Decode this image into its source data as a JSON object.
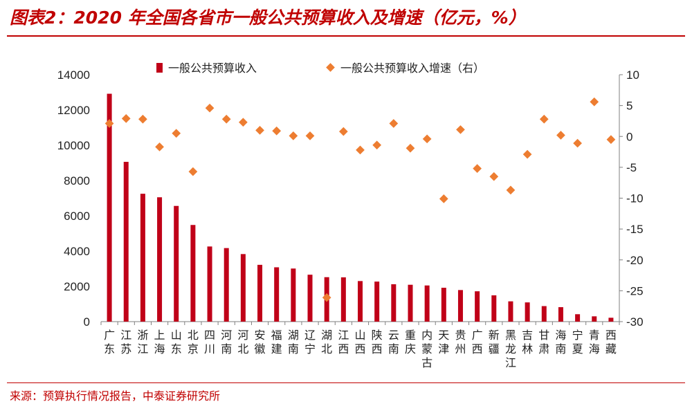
{
  "title": "图表2：2020 年全国各省市一般公共预算收入及增速（亿元，%）",
  "source": "来源：预算执行情况报告，中泰证券研究所",
  "colors": {
    "bar": "#c00018",
    "marker": "#ed7d31",
    "accent": "#c00000"
  },
  "chart_data": {
    "type": "bar",
    "categories": [
      "广东",
      "江苏",
      "浙江",
      "上海",
      "山东",
      "北京",
      "四川",
      "河南",
      "河北",
      "安徽",
      "福建",
      "湖南",
      "辽宁",
      "湖北",
      "江西",
      "山西",
      "陕西",
      "云南",
      "重庆",
      "内蒙古",
      "天津",
      "贵州",
      "广西",
      "新疆",
      "黑龙江",
      "吉林",
      "甘肃",
      "海南",
      "宁夏",
      "青海",
      "西藏"
    ],
    "series": [
      {
        "name": "一般公共预算收入",
        "type": "bar",
        "axis": "left",
        "values": [
          12920,
          9060,
          7250,
          7050,
          6560,
          5480,
          4260,
          4170,
          3830,
          3220,
          3080,
          3010,
          2660,
          2520,
          2510,
          2300,
          2270,
          2120,
          2090,
          2050,
          1920,
          1790,
          1720,
          1490,
          1150,
          1090,
          880,
          820,
          420,
          300,
          220
        ]
      },
      {
        "name": "一般公共预算收入增速（右）",
        "type": "scatter",
        "axis": "right",
        "values": [
          2.1,
          2.9,
          2.8,
          -1.7,
          0.5,
          -5.7,
          4.6,
          2.8,
          2.3,
          1.0,
          0.9,
          0.1,
          0.1,
          -26.1,
          0.8,
          -2.2,
          -1.4,
          2.1,
          -1.9,
          -0.4,
          -10.1,
          1.1,
          -5.2,
          -6.5,
          -8.7,
          -2.9,
          2.8,
          0.2,
          -1.1,
          5.6,
          -0.5
        ]
      }
    ],
    "y_left": {
      "min": 0,
      "max": 14000,
      "ticks": [
        0,
        2000,
        4000,
        6000,
        8000,
        10000,
        12000,
        14000
      ]
    },
    "y_right": {
      "min": -30,
      "max": 10,
      "ticks": [
        -30,
        -25,
        -20,
        -15,
        -10,
        -5,
        0,
        5,
        10
      ]
    },
    "legend": "top-center",
    "grid": false
  }
}
